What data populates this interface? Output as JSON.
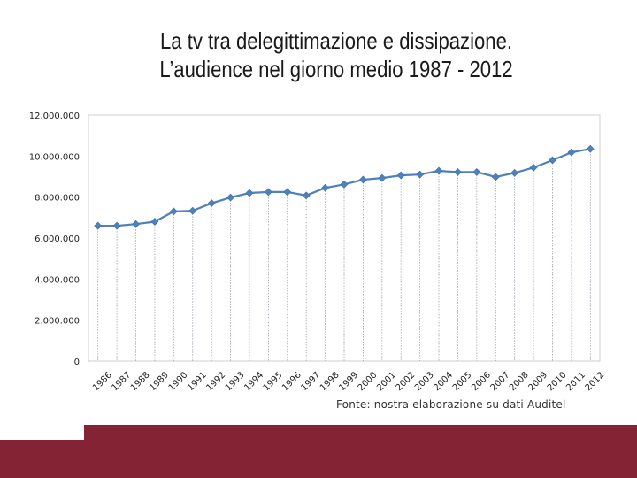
{
  "title": {
    "line1": "La tv tra delegittimazione e dissipazione.",
    "line2": "L’audience nel giorno medio 1987 - 2012"
  },
  "source": "Fonte: nostra elaborazione su dati Auditel",
  "colors": {
    "line": "#4f81bd",
    "marker": "#4f81bd",
    "band": "#842333"
  },
  "chart_data": {
    "type": "line",
    "title": "",
    "xlabel": "",
    "ylabel": "",
    "ylim": [
      0,
      12000000
    ],
    "ytick_values": [
      0,
      2000000,
      4000000,
      6000000,
      8000000,
      10000000,
      12000000
    ],
    "ytick_labels": [
      "0",
      "2.000.000",
      "4.000.000",
      "6.000.000",
      "8.000.000",
      "10.000.000",
      "12.000.000"
    ],
    "categories": [
      "1986",
      "1987",
      "1988",
      "1989",
      "1990",
      "1991",
      "1992",
      "1993",
      "1994",
      "1995",
      "1996",
      "1997",
      "1998",
      "1999",
      "2000",
      "2001",
      "2002",
      "2003",
      "2004",
      "2005",
      "2006",
      "2007",
      "2008",
      "2009",
      "2010",
      "2011",
      "2012"
    ],
    "values": [
      6600000,
      6600000,
      6680000,
      6800000,
      7300000,
      7330000,
      7700000,
      7980000,
      8200000,
      8250000,
      8250000,
      8080000,
      8450000,
      8620000,
      8850000,
      8930000,
      9060000,
      9100000,
      9280000,
      9220000,
      9220000,
      8980000,
      9180000,
      9440000,
      9800000,
      10180000,
      10350000
    ],
    "grid": false,
    "drop_lines": true,
    "legend": "none"
  }
}
